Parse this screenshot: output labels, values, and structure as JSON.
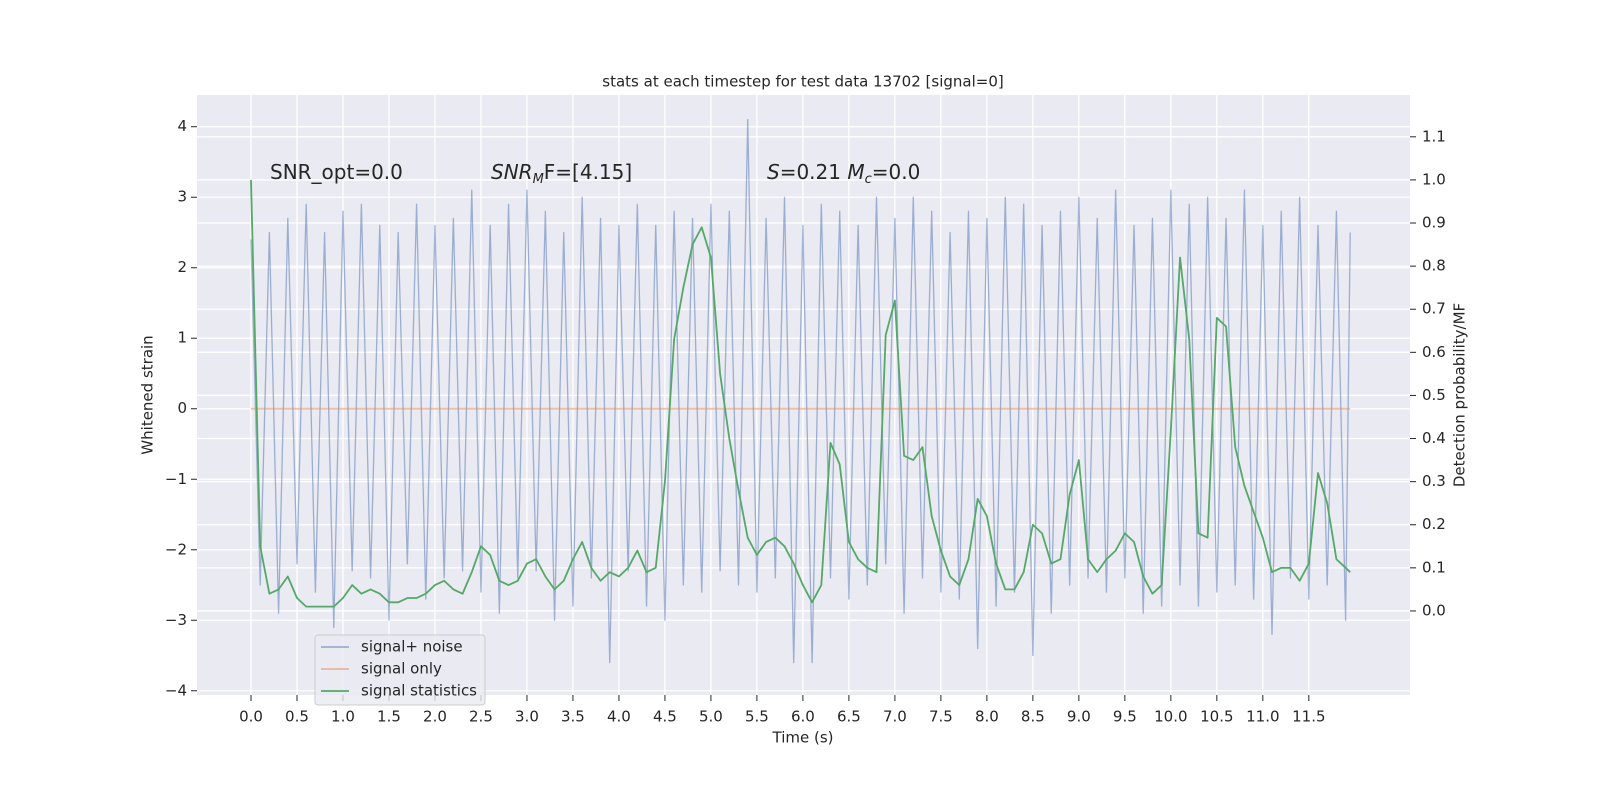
{
  "chart_data": {
    "type": "line",
    "title": "stats at each timestep for test data 13702 [signal=0]",
    "x_label": "Time (s)",
    "y_label": "Whitened strain",
    "y2_label": "Detection probability/MF",
    "annotations": [
      [
        "SNR_opt=0.0"
      ],
      [
        "SNR",
        "M",
        "F=[4.15]"
      ],
      [
        "S",
        "=0.21   ",
        "M",
        "c",
        "=0.0"
      ]
    ],
    "xlim": [
      -0.587,
      12.6
    ],
    "ylim": [
      -4.06,
      4.45
    ],
    "y2lim": [
      -0.195,
      1.197
    ],
    "xticks": [
      {
        "value": 0,
        "label": "0.0"
      },
      0.5,
      {
        "value": 1,
        "label": "1.0"
      },
      1.5,
      {
        "value": 2,
        "label": "2.0"
      },
      2.5,
      {
        "value": 3,
        "label": "3.0"
      },
      3.5,
      {
        "value": 4,
        "label": "4.0"
      },
      4.5,
      {
        "value": 5,
        "label": "5.0"
      },
      5.5,
      {
        "value": 6,
        "label": "6.0"
      },
      6.5,
      {
        "value": 7,
        "label": "7.0"
      },
      7.5,
      {
        "value": 8,
        "label": "8.0"
      },
      8.5,
      {
        "value": 9,
        "label": "9.0"
      },
      9.5,
      {
        "value": 10,
        "label": "10.0"
      },
      10.5,
      {
        "value": 11,
        "label": "11.0"
      },
      11.5
    ],
    "yticks": [
      {
        "value": -4,
        "label": "−4"
      },
      {
        "value": -3,
        "label": "−3"
      },
      {
        "value": -2,
        "label": "−2"
      },
      {
        "value": -1,
        "label": "−1"
      },
      0,
      1,
      2,
      3,
      4
    ],
    "y2ticks": [
      {
        "value": 0,
        "label": "0.0"
      },
      0.1,
      0.2,
      0.3,
      0.4,
      0.5,
      0.6,
      0.7,
      0.8,
      0.9,
      {
        "value": 1,
        "label": "1.0"
      },
      1.1
    ],
    "grid": true,
    "legend_loc": "lower left",
    "series": [
      {
        "name": "signal+ noise",
        "color": "#4c72b0",
        "x": [
          0,
          0.1,
          0.2,
          0.3,
          0.4,
          0.5,
          0.6,
          0.7,
          0.8,
          0.9,
          1,
          1.1,
          1.2,
          1.3,
          1.4,
          1.5,
          1.6,
          1.7,
          1.8,
          1.9,
          2,
          2.1,
          2.2,
          2.3,
          2.4,
          2.5,
          2.6,
          2.7,
          2.8,
          2.9,
          3,
          3.1,
          3.2,
          3.3,
          3.4,
          3.5,
          3.6,
          3.7,
          3.8,
          3.9,
          4,
          4.1,
          4.2,
          4.3,
          4.4,
          4.5,
          4.6,
          4.7,
          4.8,
          4.9,
          5,
          5.1,
          5.2,
          5.3,
          5.4,
          5.5,
          5.6,
          5.7,
          5.8,
          5.9,
          6,
          6.1,
          6.2,
          6.3,
          6.4,
          6.5,
          6.6,
          6.7,
          6.8,
          6.9,
          7,
          7.1,
          7.2,
          7.3,
          7.4,
          7.5,
          7.6,
          7.7,
          7.8,
          7.9,
          8,
          8.1,
          8.2,
          8.3,
          8.4,
          8.5,
          8.6,
          8.7,
          8.8,
          8.9,
          9,
          9.1,
          9.2,
          9.3,
          9.4,
          9.5,
          9.6,
          9.7,
          9.8,
          9.9,
          10,
          10.1,
          10.2,
          10.3,
          10.4,
          10.5,
          10.6,
          10.7,
          10.8,
          10.9,
          11,
          11.1,
          11.2,
          11.3,
          11.4,
          11.5,
          11.6,
          11.7,
          11.8,
          11.9,
          11.95
        ],
        "values": [
          2.4,
          -2.5,
          2.5,
          -2.9,
          2.7,
          -2.2,
          2.9,
          -2.6,
          2.5,
          -3.1,
          2.8,
          -2.3,
          2.9,
          -2.4,
          2.6,
          -3.0,
          2.5,
          -2.2,
          2.9,
          -2.7,
          2.6,
          -2.4,
          2.7,
          -2.3,
          3.1,
          -2.6,
          2.6,
          -2.9,
          2.9,
          -2.4,
          3.1,
          -2.3,
          2.8,
          -3.0,
          2.5,
          -2.8,
          3.0,
          -2.4,
          2.7,
          -3.6,
          2.6,
          -2.3,
          2.9,
          -2.8,
          2.6,
          -3.0,
          2.8,
          -2.5,
          2.7,
          -2.6,
          2.9,
          -2.3,
          2.8,
          -2.5,
          4.1,
          -2.6,
          2.7,
          -2.4,
          3.0,
          -3.6,
          2.6,
          -3.6,
          2.9,
          -2.4,
          2.8,
          -2.7,
          2.6,
          -2.5,
          3.0,
          -2.2,
          2.7,
          -2.9,
          3.0,
          -2.4,
          2.8,
          -2.6,
          2.5,
          -2.7,
          2.8,
          -3.4,
          2.7,
          -2.8,
          3.0,
          -2.6,
          2.9,
          -3.5,
          2.6,
          -2.9,
          2.8,
          -2.5,
          3.0,
          -2.4,
          2.7,
          -2.6,
          3.1,
          -2.4,
          2.6,
          -2.9,
          2.7,
          -2.8,
          3.1,
          -2.5,
          2.9,
          -2.8,
          3.0,
          -2.6,
          2.7,
          -2.5,
          3.1,
          -2.7,
          2.6,
          -3.2,
          2.8,
          -2.4,
          3.0,
          -2.7,
          2.6,
          -2.5,
          2.8,
          -3.0,
          2.5
        ]
      },
      {
        "name": "signal only",
        "color": "#dd8452",
        "x": [
          0,
          11.95
        ],
        "values": [
          0,
          0
        ]
      },
      {
        "name": "signal statistics",
        "color": "#55a868",
        "axis": "y2",
        "x": [
          0,
          0.1,
          0.2,
          0.3,
          0.4,
          0.5,
          0.6,
          0.7,
          0.8,
          0.9,
          1,
          1.1,
          1.2,
          1.3,
          1.4,
          1.5,
          1.6,
          1.7,
          1.8,
          1.9,
          2,
          2.1,
          2.2,
          2.3,
          2.4,
          2.5,
          2.6,
          2.7,
          2.8,
          2.9,
          3,
          3.1,
          3.2,
          3.3,
          3.4,
          3.5,
          3.6,
          3.7,
          3.8,
          3.9,
          4,
          4.1,
          4.2,
          4.3,
          4.4,
          4.5,
          4.6,
          4.7,
          4.8,
          4.9,
          5,
          5.1,
          5.2,
          5.3,
          5.4,
          5.5,
          5.6,
          5.7,
          5.8,
          5.9,
          6,
          6.1,
          6.2,
          6.3,
          6.4,
          6.5,
          6.6,
          6.7,
          6.8,
          6.9,
          7,
          7.1,
          7.2,
          7.3,
          7.4,
          7.5,
          7.6,
          7.7,
          7.8,
          7.9,
          8,
          8.1,
          8.2,
          8.3,
          8.4,
          8.5,
          8.6,
          8.7,
          8.8,
          8.9,
          9,
          9.1,
          9.2,
          9.3,
          9.4,
          9.5,
          9.6,
          9.7,
          9.8,
          9.9,
          10,
          10.1,
          10.2,
          10.3,
          10.4,
          10.5,
          10.6,
          10.7,
          10.8,
          10.9,
          11,
          11.1,
          11.2,
          11.3,
          11.4,
          11.5,
          11.6,
          11.7,
          11.8,
          11.9,
          11.95
        ],
        "values": [
          1.0,
          0.15,
          0.04,
          0.05,
          0.08,
          0.03,
          0.01,
          0.01,
          0.01,
          0.01,
          0.03,
          0.06,
          0.04,
          0.05,
          0.04,
          0.02,
          0.02,
          0.03,
          0.03,
          0.04,
          0.06,
          0.07,
          0.05,
          0.04,
          0.09,
          0.15,
          0.13,
          0.07,
          0.06,
          0.07,
          0.11,
          0.12,
          0.08,
          0.05,
          0.07,
          0.12,
          0.16,
          0.1,
          0.07,
          0.09,
          0.08,
          0.1,
          0.14,
          0.09,
          0.1,
          0.3,
          0.63,
          0.75,
          0.85,
          0.89,
          0.82,
          0.55,
          0.4,
          0.28,
          0.17,
          0.13,
          0.16,
          0.17,
          0.15,
          0.11,
          0.06,
          0.02,
          0.06,
          0.39,
          0.34,
          0.16,
          0.12,
          0.1,
          0.09,
          0.64,
          0.72,
          0.36,
          0.35,
          0.38,
          0.22,
          0.14,
          0.08,
          0.06,
          0.12,
          0.26,
          0.22,
          0.11,
          0.05,
          0.05,
          0.09,
          0.2,
          0.18,
          0.11,
          0.12,
          0.27,
          0.35,
          0.12,
          0.09,
          0.12,
          0.14,
          0.18,
          0.16,
          0.08,
          0.04,
          0.06,
          0.42,
          0.82,
          0.63,
          0.18,
          0.17,
          0.68,
          0.66,
          0.38,
          0.29,
          0.23,
          0.17,
          0.09,
          0.1,
          0.1,
          0.07,
          0.11,
          0.32,
          0.25,
          0.12,
          0.1,
          0.09
        ]
      }
    ]
  }
}
